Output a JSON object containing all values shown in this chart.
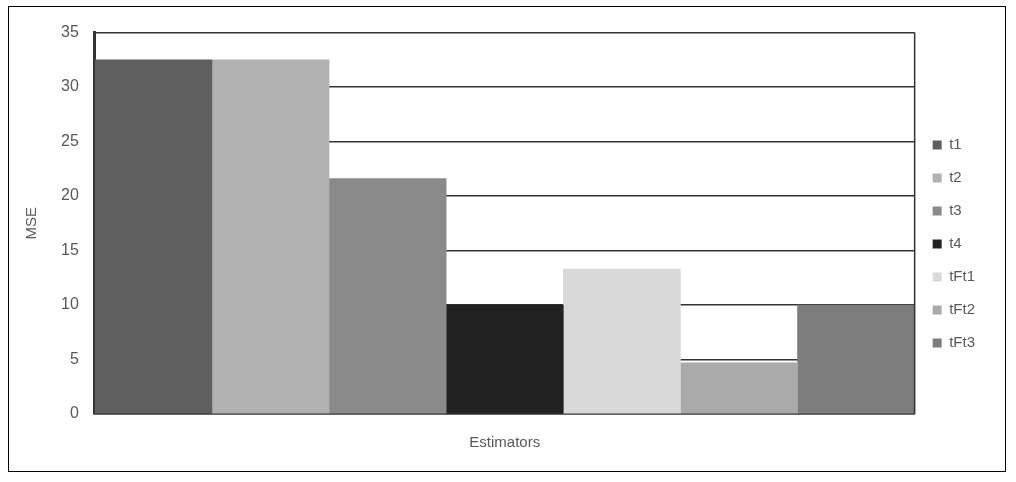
{
  "chart_data": {
    "type": "bar",
    "xlabel": "Estimators",
    "ylabel": "MSE",
    "categories": [
      null
    ],
    "series": [
      {
        "name": "t1",
        "color": "#5f5f5f",
        "values": [
          32.5
        ]
      },
      {
        "name": "t2",
        "color": "#b2b2b2",
        "values": [
          32.5
        ]
      },
      {
        "name": "t3",
        "color": "#8a8a8a",
        "values": [
          21.6
        ]
      },
      {
        "name": "t4",
        "color": "#222222",
        "values": [
          10
        ]
      },
      {
        "name": "tFt1",
        "color": "#d9d9d9",
        "values": [
          13.3
        ]
      },
      {
        "name": "tFt2",
        "color": "#aaaaaa",
        "values": [
          4.7
        ]
      },
      {
        "name": "tFt3",
        "color": "#7d7d7d",
        "values": [
          10
        ]
      }
    ],
    "ylim": [
      0,
      35
    ],
    "yticks": [
      0,
      5,
      10,
      15,
      20,
      25,
      30,
      35
    ],
    "grid": "y",
    "legend": "right"
  }
}
